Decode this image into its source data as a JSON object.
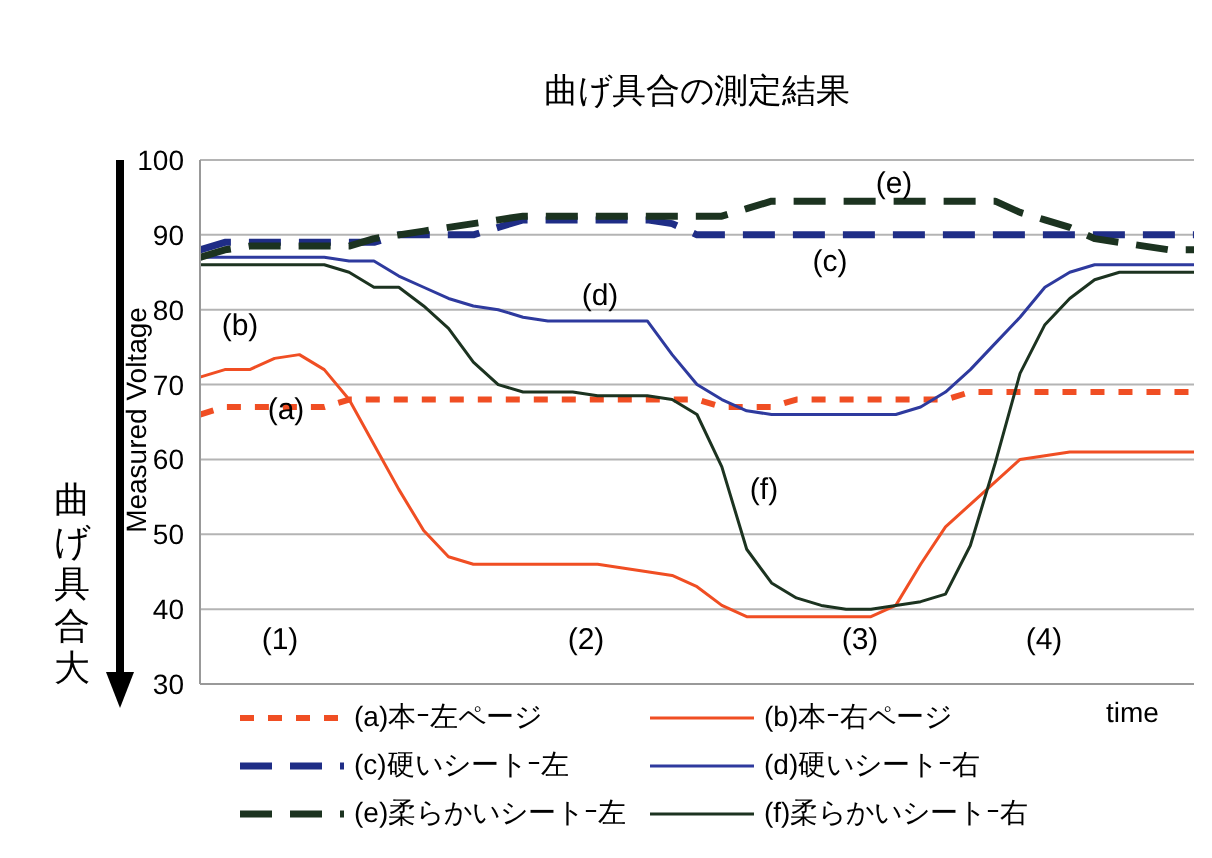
{
  "chart_data": {
    "type": "line",
    "title": "曲げ具合の測定結果",
    "xlabel": "time",
    "ylabel": "Measured Voltage",
    "categories": [
      null,
      null,
      null,
      null,
      null,
      null,
      null,
      null,
      null,
      null,
      null,
      null,
      null,
      null,
      null,
      null,
      null,
      null,
      null,
      null,
      null,
      null,
      null,
      null,
      null,
      null,
      null,
      null,
      null,
      null,
      null,
      null,
      null,
      null,
      null,
      null,
      null,
      null,
      null,
      null,
      null
    ],
    "ylim": [
      30,
      100
    ],
    "yticks": [
      30,
      40,
      50,
      60,
      70,
      80,
      90,
      100
    ],
    "tick_labels": "y",
    "grid": "y",
    "legend": "bottom",
    "marker": "none",
    "annotations": [
      "(a)",
      "(b)",
      "(c)",
      "(d)",
      "(e)",
      "(f)",
      "(1)",
      "(2)",
      "(3)",
      "(4)",
      "曲げ具合大"
    ],
    "series": [
      {
        "name": "(a)本ｰ左ページ",
        "color": "#f04e23",
        "line_style": "dotted",
        "values": [
          66,
          67,
          67,
          67,
          67,
          67,
          68,
          68,
          68,
          68,
          68,
          68,
          68,
          68,
          68,
          68,
          68,
          68,
          68,
          68,
          68,
          67,
          67,
          67,
          68,
          68,
          68,
          68,
          68,
          68,
          68,
          69,
          69,
          69,
          69,
          69,
          69,
          69,
          69,
          69,
          69
        ]
      },
      {
        "name": "(b)本ｰ右ページ",
        "color": "#f04e23",
        "line_style": "solid",
        "values": [
          71,
          72,
          72,
          73.5,
          74,
          72,
          68,
          62,
          56,
          50.5,
          47,
          46,
          46,
          46,
          46,
          46,
          46,
          45.5,
          45,
          44.5,
          43,
          40.5,
          39,
          39,
          39,
          39,
          39,
          39,
          40.5,
          46,
          51,
          54,
          57,
          60,
          60.5,
          61,
          61,
          61,
          61,
          61,
          61
        ]
      },
      {
        "name": "(c)硬いシートｰ左",
        "color": "#1f2d86",
        "line_style": "dashed",
        "values": [
          88,
          89,
          89,
          89,
          89,
          89,
          89,
          89,
          90,
          90,
          90,
          90,
          91,
          92,
          92,
          92,
          92,
          92,
          92,
          91.5,
          90,
          90,
          90,
          90,
          90,
          90,
          90,
          90,
          90,
          90,
          90,
          90,
          90,
          90,
          90,
          90,
          90,
          90,
          90,
          90,
          90
        ]
      },
      {
        "name": "(d)硬いシートｰ右",
        "color": "#2e3a9e",
        "line_style": "solid",
        "values": [
          87,
          87,
          87,
          87,
          87,
          87,
          86.5,
          86.5,
          84.5,
          83,
          81.5,
          80.5,
          80,
          79,
          78.5,
          78.5,
          78.5,
          78.5,
          78.5,
          74,
          70,
          68,
          66.5,
          66,
          66,
          66,
          66,
          66,
          66,
          67,
          69,
          72,
          75.5,
          79,
          83,
          85,
          86,
          86,
          86,
          86,
          86
        ]
      },
      {
        "name": "(e)柔らかいシートｰ左",
        "color": "#1c3320",
        "line_style": "dashed",
        "values": [
          87,
          88,
          88.5,
          88.5,
          88.5,
          88.5,
          88.5,
          89.5,
          90,
          90.5,
          91,
          91.5,
          92,
          92.5,
          92.5,
          92.5,
          92.5,
          92.5,
          92.5,
          92.5,
          92.5,
          92.5,
          93.5,
          94.5,
          94.5,
          94.5,
          94.5,
          94.5,
          94.5,
          94.5,
          94.5,
          94.5,
          94.5,
          93,
          92,
          91,
          89.5,
          89,
          88.5,
          88,
          88
        ]
      },
      {
        "name": "(f)柔らかいシートｰ右",
        "color": "#1c3320",
        "line_style": "solid",
        "values": [
          86,
          86,
          86,
          86,
          86,
          86,
          85,
          83,
          83,
          80.5,
          77.5,
          73,
          70,
          69,
          69,
          69,
          68.5,
          68.5,
          68.5,
          68,
          66,
          59,
          48,
          43.5,
          41.5,
          40.5,
          40,
          40,
          40.5,
          41,
          42,
          48.5,
          59.5,
          71.5,
          78,
          81.5,
          84,
          85,
          85,
          85,
          85
        ]
      }
    ]
  }
}
